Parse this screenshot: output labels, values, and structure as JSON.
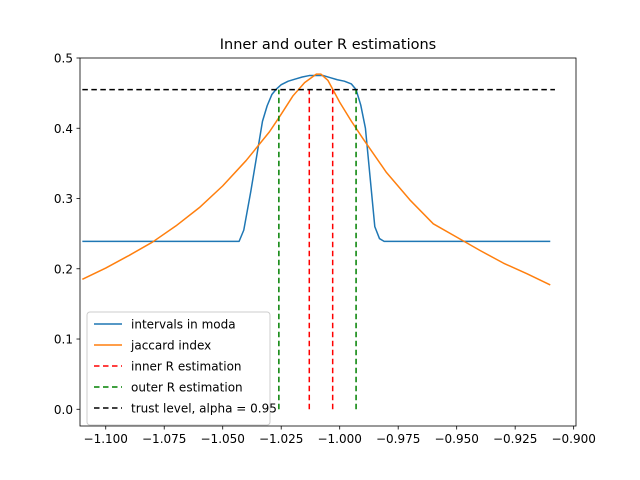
{
  "chart_data": {
    "type": "line",
    "title": "Inner and outer R estimations",
    "xlabel": "",
    "ylabel": "",
    "xlim": [
      -1.111,
      -0.899
    ],
    "ylim": [
      -0.0238,
      0.5
    ],
    "x_ticks": [
      -1.1,
      -1.075,
      -1.05,
      -1.025,
      -1.0,
      -0.975,
      -0.95,
      -0.925,
      -0.9
    ],
    "x_tick_labels": [
      "−1.100",
      "−1.075",
      "−1.050",
      "−1.025",
      "−1.000",
      "−0.975",
      "−0.950",
      "−0.925",
      "−0.900"
    ],
    "y_ticks": [
      0.0,
      0.1,
      0.2,
      0.3,
      0.4,
      0.5
    ],
    "y_tick_labels": [
      "0.0",
      "0.1",
      "0.2",
      "0.3",
      "0.4",
      "0.5"
    ],
    "grid": false,
    "legend_position": "lower-left",
    "series": [
      {
        "name": "intervals in moda",
        "color": "#1f77b4",
        "style": "solid",
        "x": [
          -1.11,
          -1.05,
          -1.043,
          -1.041,
          -1.038,
          -1.035,
          -1.033,
          -1.031,
          -1.029,
          -1.027,
          -1.025,
          -1.022,
          -1.019,
          -1.016,
          -1.013,
          -1.01,
          -1.007,
          -1.004,
          -1.001,
          -0.998,
          -0.995,
          -0.993,
          -0.991,
          -0.989,
          -0.987,
          -0.985,
          -0.983,
          -0.981,
          -0.979,
          -0.977,
          -0.91
        ],
        "y": [
          0.239,
          0.239,
          0.239,
          0.255,
          0.31,
          0.37,
          0.41,
          0.432,
          0.448,
          0.456,
          0.462,
          0.467,
          0.47,
          0.473,
          0.475,
          0.475,
          0.475,
          0.472,
          0.469,
          0.467,
          0.463,
          0.455,
          0.433,
          0.4,
          0.33,
          0.26,
          0.243,
          0.239,
          0.239,
          0.239,
          0.239
        ]
      },
      {
        "name": "jaccard index",
        "color": "#ff7f0e",
        "style": "solid",
        "x": [
          -1.11,
          -1.1,
          -1.09,
          -1.08,
          -1.07,
          -1.06,
          -1.05,
          -1.04,
          -1.03,
          -1.025,
          -1.02,
          -1.015,
          -1.01,
          -1.008,
          -1.005,
          -1.0,
          -0.995,
          -0.99,
          -0.98,
          -0.97,
          -0.96,
          -0.95,
          -0.94,
          -0.93,
          -0.92,
          -0.91
        ],
        "y": [
          0.185,
          0.201,
          0.219,
          0.238,
          0.261,
          0.287,
          0.318,
          0.354,
          0.395,
          0.42,
          0.446,
          0.465,
          0.477,
          0.477,
          0.468,
          0.437,
          0.41,
          0.385,
          0.337,
          0.298,
          0.264,
          0.245,
          0.226,
          0.208,
          0.193,
          0.177
        ]
      },
      {
        "name": "inner R estimation",
        "color": "#ff0000",
        "style": "dashed",
        "segments": [
          {
            "x": -1.013,
            "y0": 0.0,
            "y1": 0.455
          },
          {
            "x": -1.003,
            "y0": 0.0,
            "y1": 0.455
          }
        ]
      },
      {
        "name": "outer R estimation",
        "color": "#008000",
        "style": "dashed",
        "segments": [
          {
            "x": -1.026,
            "y0": 0.0,
            "y1": 0.455
          },
          {
            "x": -0.993,
            "y0": 0.0,
            "y1": 0.455
          }
        ]
      },
      {
        "name": "trust level, alpha = 0.95",
        "color": "#000000",
        "style": "dashed",
        "x": [
          -1.11,
          -0.908
        ],
        "y": [
          0.455,
          0.455
        ]
      }
    ]
  }
}
